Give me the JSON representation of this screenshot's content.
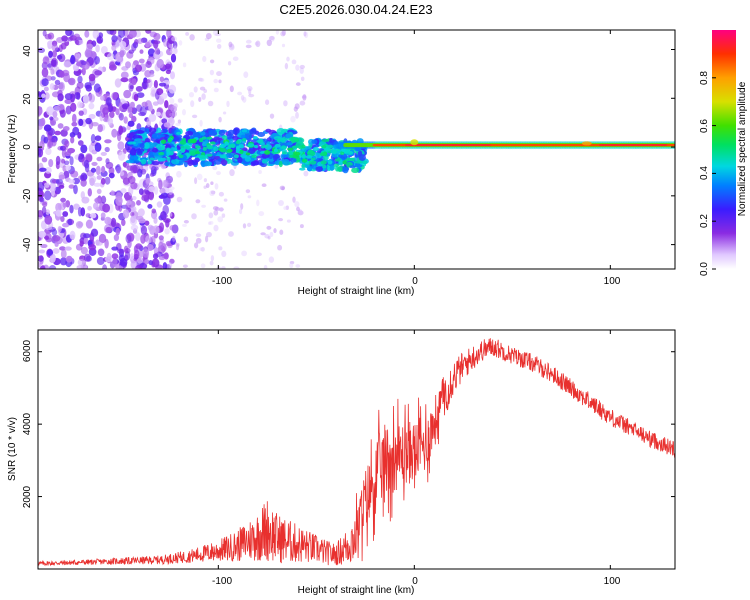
{
  "title": "C2E5.2026.030.04.24.E23",
  "chart_data": [
    {
      "type": "heatmap",
      "name": "spectrogram",
      "xlabel": "Height of straight line (km)",
      "ylabel": "Frequency (Hz)",
      "xlim": [
        -192,
        133
      ],
      "ylim": [
        -50,
        48
      ],
      "xticks": [
        -100,
        0,
        100
      ],
      "yticks": [
        -40,
        -20,
        0,
        20,
        40
      ],
      "xtick_labels": [
        "-100",
        "0",
        "100"
      ],
      "ytick_labels": [
        "-40",
        "-20",
        "0",
        "20",
        "40"
      ],
      "colorbar": {
        "label": "Normalized spectral amplitude",
        "range": [
          0,
          1
        ],
        "ticks": [
          0.0,
          0.2,
          0.4,
          0.6,
          0.8
        ],
        "tick_labels": [
          "0.0",
          "0.2",
          "0.4",
          "0.6",
          "0.8"
        ]
      },
      "description_regions": [
        {
          "x_range": [
            -192,
            -125
          ],
          "freq_range": [
            -50,
            48
          ],
          "amplitude": 0.1
        },
        {
          "x_range": [
            -145,
            -60
          ],
          "freq_range": [
            -8,
            8
          ],
          "amplitude": 0.3
        },
        {
          "x_range": [
            -60,
            -20
          ],
          "freq_range": [
            -10,
            2
          ],
          "amplitude": 0.45
        },
        {
          "x_range": [
            -20,
            133
          ],
          "freq_range": [
            -1,
            2
          ],
          "amplitude": 0.95
        }
      ]
    },
    {
      "type": "line",
      "name": "snr",
      "xlabel": "Height of straight line (km)",
      "ylabel": "SNR (10 * v/v)",
      "xlim": [
        -192,
        133
      ],
      "ylim": [
        0,
        6600
      ],
      "xticks": [
        -100,
        0,
        100
      ],
      "yticks": [
        2000,
        4000,
        6000
      ],
      "xtick_labels": [
        "-100",
        "0",
        "100"
      ],
      "ytick_labels": [
        "2000",
        "4000",
        "6000"
      ],
      "series_color": "#e8302e",
      "envelope": {
        "x": [
          -192,
          -160,
          -130,
          -115,
          -100,
          -90,
          -80,
          -75,
          -70,
          -60,
          -50,
          -45,
          -40,
          -35,
          -30,
          -27,
          -25,
          -20,
          -15,
          -10,
          -5,
          0,
          5,
          10,
          15,
          20,
          25,
          30,
          35,
          40,
          50,
          60,
          70,
          80,
          90,
          100,
          110,
          120,
          133
        ],
        "mean": [
          150,
          200,
          250,
          350,
          500,
          650,
          900,
          1100,
          850,
          700,
          550,
          450,
          400,
          600,
          900,
          1500,
          1900,
          2500,
          3000,
          3100,
          3200,
          3300,
          3400,
          4000,
          4800,
          5300,
          5600,
          5850,
          6050,
          6150,
          5900,
          5700,
          5400,
          5000,
          4600,
          4200,
          3900,
          3600,
          3300
        ],
        "noise": [
          60,
          80,
          120,
          180,
          300,
          450,
          700,
          900,
          700,
          550,
          400,
          350,
          300,
          500,
          800,
          1000,
          1100,
          1200,
          1300,
          1200,
          1100,
          1000,
          1000,
          900,
          700,
          500,
          400,
          350,
          300,
          280,
          250,
          250,
          250,
          250,
          250,
          250,
          230,
          230,
          230
        ]
      }
    }
  ]
}
